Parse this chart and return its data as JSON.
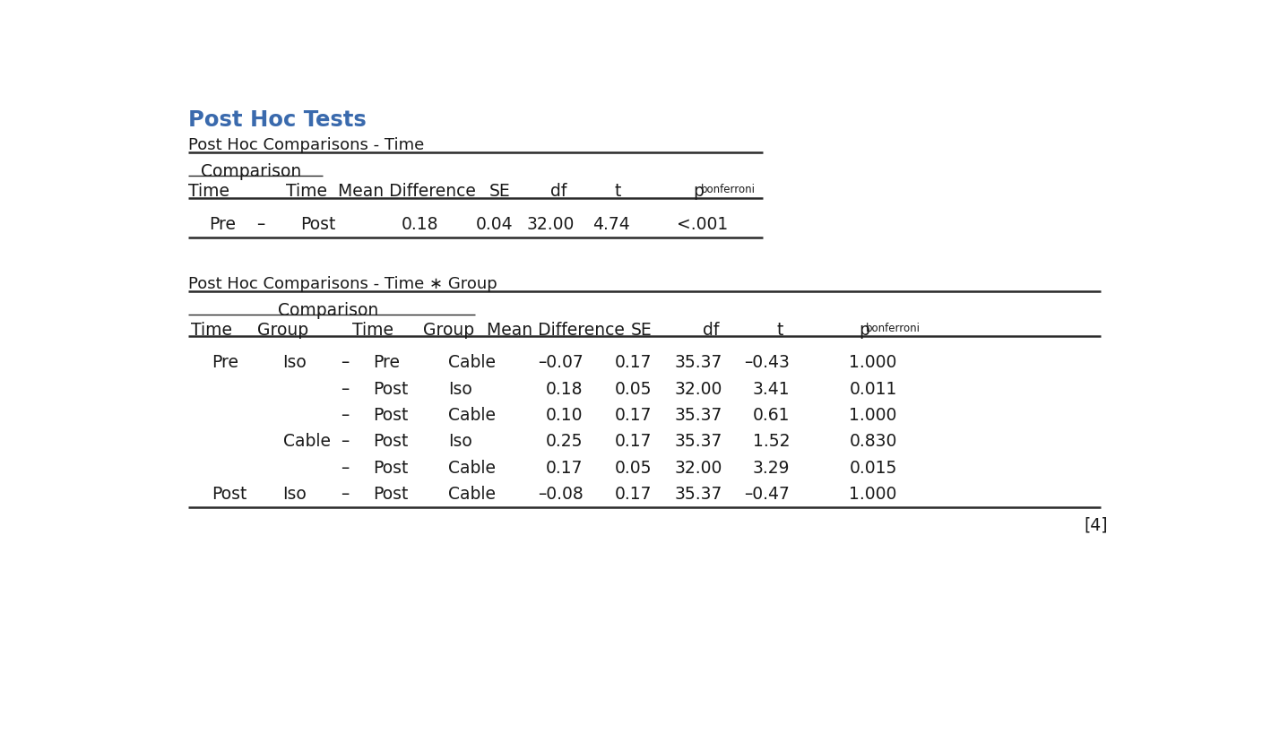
{
  "title": "Post Hoc Tests",
  "title_color": "#3a6aad",
  "title_fontsize": 18,
  "table1_title": "Post Hoc Comparisons - Time",
  "table1_comparison_header": "Comparison",
  "table1_headers": [
    "Time",
    "Time",
    "Mean Difference",
    "SE",
    "df",
    "t"
  ],
  "table1_p_header": [
    "p",
    "bonferroni"
  ],
  "table1_rows": [
    [
      "Pre",
      "–",
      "Post",
      "0.18",
      "0.04",
      "32.00",
      "4.74",
      "<.001"
    ]
  ],
  "table2_title": "Post Hoc Comparisons - Time ∗ Group",
  "table2_comparison_header": "Comparison",
  "table2_headers": [
    "Time",
    "Group",
    "Time",
    "Group",
    "Mean Difference",
    "SE",
    "df",
    "t"
  ],
  "table2_p_header": [
    "p",
    "bonferroni"
  ],
  "table2_rows": [
    [
      "Pre",
      "Iso",
      "–",
      "Pre",
      "Cable",
      "–0.07",
      "0.17",
      "35.37",
      "–0.43",
      "1.000"
    ],
    [
      "",
      "",
      "–",
      "Post",
      "Iso",
      "0.18",
      "0.05",
      "32.00",
      "3.41",
      "0.011"
    ],
    [
      "",
      "",
      "–",
      "Post",
      "Cable",
      "0.10",
      "0.17",
      "35.37",
      "0.61",
      "1.000"
    ],
    [
      "",
      "Cable",
      "–",
      "Post",
      "Iso",
      "0.25",
      "0.17",
      "35.37",
      "1.52",
      "0.830"
    ],
    [
      "",
      "",
      "–",
      "Post",
      "Cable",
      "0.17",
      "0.05",
      "32.00",
      "3.29",
      "0.015"
    ],
    [
      "Post",
      "Iso",
      "–",
      "Post",
      "Cable",
      "–0.08",
      "0.17",
      "35.37",
      "–0.47",
      "1.000"
    ]
  ],
  "footnote": "[4]",
  "bg_color": "#ffffff",
  "text_color": "#1a1a1a",
  "thick_lw": 1.8,
  "thin_lw": 1.0
}
